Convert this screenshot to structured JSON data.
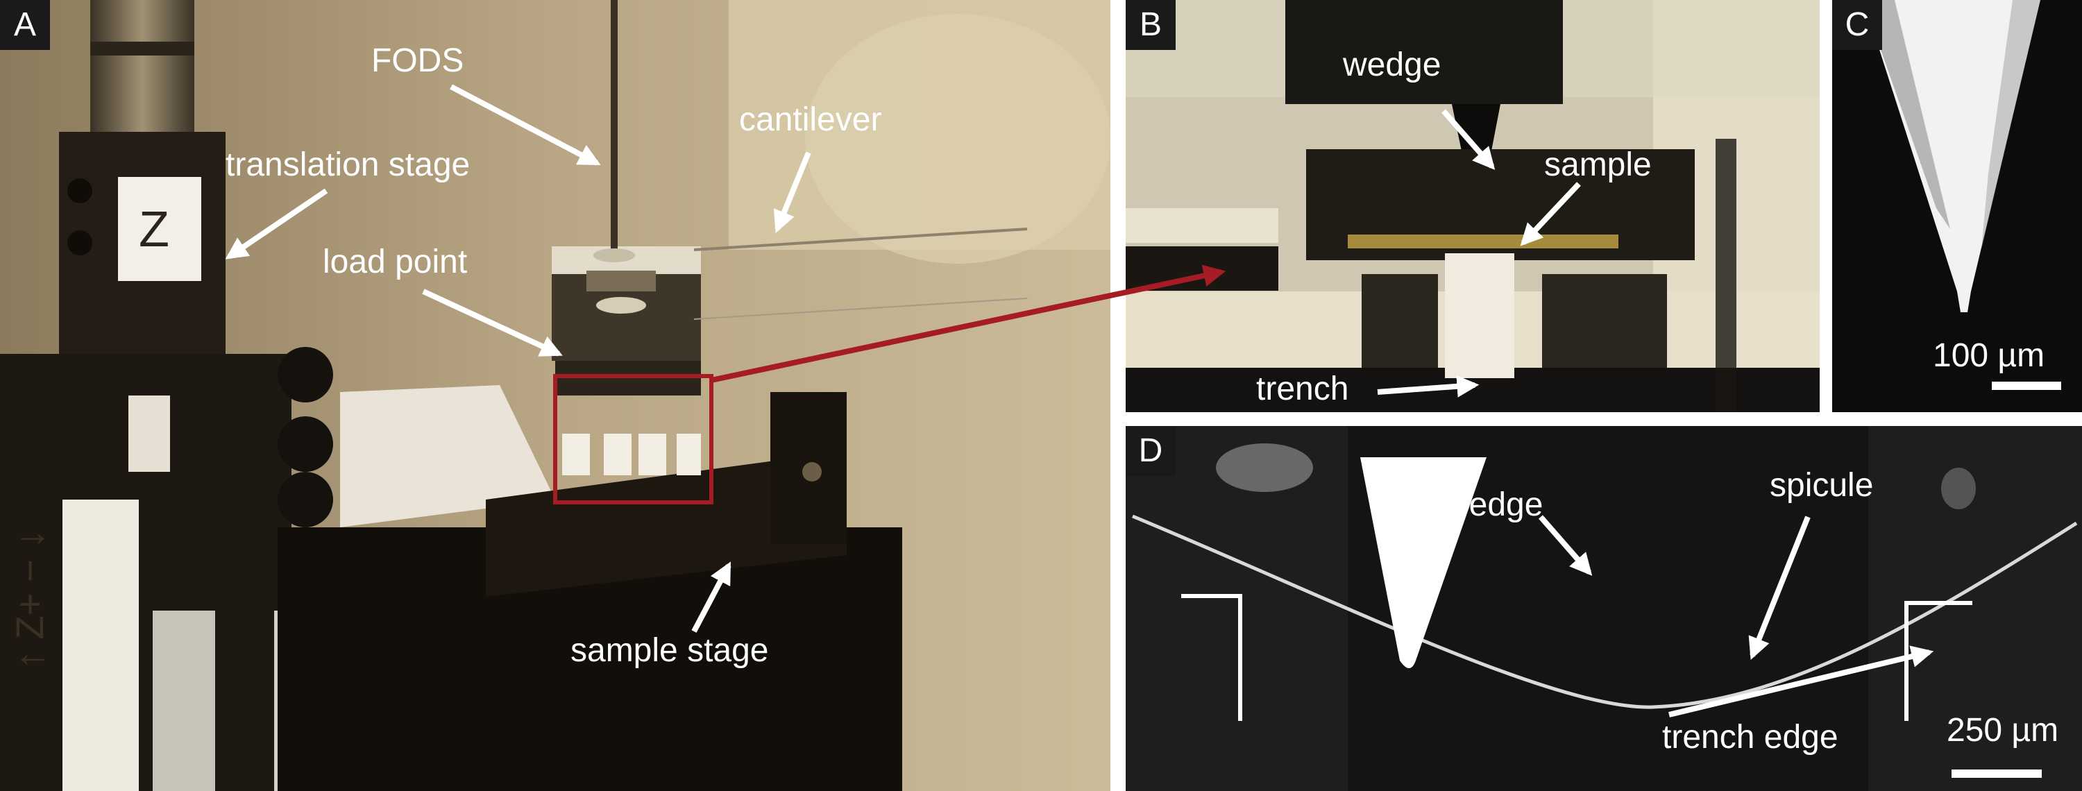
{
  "panels": {
    "A": {
      "label": "A",
      "annotations": {
        "fods": "FODS",
        "cantilever": "cantilever",
        "translation_stage": "translation stage",
        "load_point": "load point",
        "sample_stage": "sample stage"
      },
      "stage_letter": "Z",
      "axis_label": "↑ Z+ − ↓"
    },
    "B": {
      "label": "B",
      "annotations": {
        "wedge": "wedge",
        "sample": "sample",
        "trench": "trench"
      }
    },
    "C": {
      "label": "C",
      "scale_bar": "100 µm"
    },
    "D": {
      "label": "D",
      "annotations": {
        "wedge": "wedge",
        "spicule": "spicule",
        "trench_edge": "trench edge"
      },
      "scale_bar": "250 µm"
    }
  },
  "colors": {
    "highlight_box": "#a51c24",
    "annotation_text": "#ffffff",
    "label_bg": "#1a1a1a"
  }
}
